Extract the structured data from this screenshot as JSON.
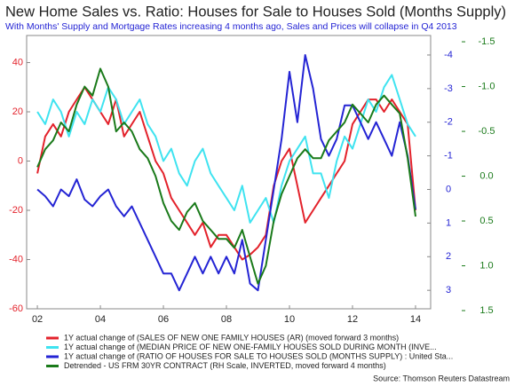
{
  "chart_data": {
    "type": "line",
    "title": "New Home Sales vs. Ratio: Houses for Sale to Houses Sold (Months Supply)",
    "subtitle": "With Months' Supply and Mortgage Rates increasing 4 months ago, Sales and Prices will collapse in Q4 2013",
    "source": "Source: Thomson Reuters Datastream",
    "x": [
      2002,
      2002.25,
      2002.5,
      2002.75,
      2003,
      2003.25,
      2003.5,
      2003.75,
      2004,
      2004.25,
      2004.5,
      2004.75,
      2005,
      2005.25,
      2005.5,
      2005.75,
      2006,
      2006.25,
      2006.5,
      2006.75,
      2007,
      2007.25,
      2007.5,
      2007.75,
      2008,
      2008.25,
      2008.5,
      2008.75,
      2009,
      2009.25,
      2009.5,
      2009.75,
      2010,
      2010.25,
      2010.5,
      2010.75,
      2011,
      2011.25,
      2011.5,
      2011.75,
      2012,
      2012.25,
      2012.5,
      2012.75,
      2013,
      2013.25,
      2013.5,
      2013.75,
      2014
    ],
    "xlim": [
      2001.66,
      2014.48
    ],
    "xticks": [
      {
        "value": 2002,
        "label": "02"
      },
      {
        "value": 2004,
        "label": "04"
      },
      {
        "value": 2006,
        "label": "06"
      },
      {
        "value": 2008,
        "label": "08"
      },
      {
        "value": 2010,
        "label": "10"
      },
      {
        "value": 2012,
        "label": "12"
      },
      {
        "value": 2014,
        "label": "14"
      }
    ],
    "ylim": [
      -60,
      51
    ],
    "yticks": [
      -60,
      -40,
      -20,
      0,
      20,
      40
    ],
    "y2lim": [
      3.55,
      -4.58
    ],
    "y2ticks": [
      -4,
      -3,
      -2,
      -1,
      0,
      1,
      2,
      3
    ],
    "y3lim": [
      1.48,
      -1.57
    ],
    "y3ticks": [
      -1.5,
      {
        "value": -1,
        "label": "-1.0"
      },
      -0.5,
      {
        "value": 0,
        "label": "0.0"
      },
      0.5,
      {
        "value": 1,
        "label": "1.0"
      },
      1.5
    ],
    "series": [
      {
        "name": "1Y actual change of (SALES OF NEW ONE FAMILY HOUSES (AR) (moved forward 3 months)",
        "color": "#e3222b",
        "axis": "y",
        "values": [
          -5,
          10,
          15,
          10,
          20,
          25,
          30,
          25,
          20,
          15,
          25,
          10,
          15,
          20,
          10,
          0,
          -5,
          -15,
          -20,
          -25,
          -30,
          -25,
          -35,
          -30,
          -30,
          -35,
          -40,
          -38,
          -35,
          -30,
          -10,
          0,
          5,
          -10,
          -25,
          -20,
          -15,
          -10,
          -5,
          0,
          15,
          20,
          25,
          25,
          20,
          25,
          20,
          15,
          -20
        ]
      },
      {
        "name": "1Y actual change of (MEDIAN PRICE OF NEW ONE-FAMILY HOUSES SOLD DURING MONTH (INVE...",
        "color": "#3fe3f0",
        "axis": "y",
        "values": [
          20,
          15,
          25,
          20,
          10,
          20,
          15,
          25,
          20,
          30,
          25,
          15,
          20,
          25,
          15,
          10,
          0,
          5,
          -5,
          -10,
          0,
          5,
          -5,
          -10,
          -15,
          -20,
          -10,
          -25,
          -20,
          -15,
          -25,
          -10,
          0,
          5,
          10,
          -5,
          -5,
          -15,
          0,
          10,
          5,
          15,
          25,
          20,
          30,
          35,
          25,
          15,
          10
        ]
      },
      {
        "name": "1Y actual change of (RATIO OF HOUSES FOR SALE TO HOUSES SOLD (MONTHS SUPPLY) : United Sta...",
        "color": "#2424d4",
        "axis": "y2",
        "values": [
          0,
          0.2,
          0.5,
          0,
          0.2,
          -0.3,
          0.3,
          0.5,
          0.2,
          0,
          0.5,
          0.8,
          0.5,
          1,
          1.5,
          2,
          2.5,
          2.5,
          3,
          2.5,
          2,
          2.5,
          2,
          2.5,
          2,
          2.5,
          1.5,
          2.8,
          3,
          1.5,
          0,
          -1.5,
          -3.5,
          -2,
          -4,
          -3,
          -1.5,
          -1,
          -1.5,
          -2.5,
          -2.5,
          -2,
          -1.5,
          -2,
          -1.5,
          -1,
          -2,
          -1,
          0.6
        ]
      },
      {
        "name": "Detrended - US FRM 30YR CONTRACT (RH Scale, INVERTED, moved forward 4 months)",
        "color": "#1a7a1a",
        "axis": "y3",
        "values": [
          -0.1,
          -0.3,
          -0.4,
          -0.6,
          -0.5,
          -0.8,
          -1.0,
          -0.9,
          -1.2,
          -1.0,
          -0.5,
          -0.6,
          -0.5,
          -0.3,
          -0.2,
          0.0,
          0.3,
          0.5,
          0.6,
          0.4,
          0.3,
          0.5,
          0.6,
          0.7,
          0.7,
          0.8,
          0.6,
          0.9,
          1.2,
          1.0,
          0.5,
          0.2,
          0.0,
          -0.2,
          -0.3,
          -0.2,
          -0.2,
          -0.4,
          -0.5,
          -0.6,
          -0.8,
          -0.7,
          -0.6,
          -0.8,
          -0.9,
          -0.8,
          -0.7,
          -0.2,
          0.45
        ]
      }
    ]
  }
}
